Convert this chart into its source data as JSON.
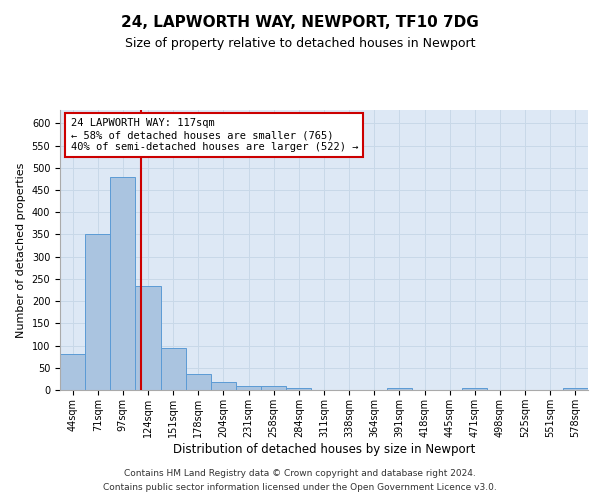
{
  "title1": "24, LAPWORTH WAY, NEWPORT, TF10 7DG",
  "title2": "Size of property relative to detached houses in Newport",
  "xlabel": "Distribution of detached houses by size in Newport",
  "ylabel": "Number of detached properties",
  "categories": [
    "44sqm",
    "71sqm",
    "97sqm",
    "124sqm",
    "151sqm",
    "178sqm",
    "204sqm",
    "231sqm",
    "258sqm",
    "284sqm",
    "311sqm",
    "338sqm",
    "364sqm",
    "391sqm",
    "418sqm",
    "445sqm",
    "471sqm",
    "498sqm",
    "525sqm",
    "551sqm",
    "578sqm"
  ],
  "values": [
    82,
    350,
    480,
    235,
    95,
    37,
    17,
    8,
    8,
    5,
    0,
    0,
    0,
    5,
    0,
    0,
    5,
    0,
    0,
    0,
    5
  ],
  "bar_color": "#aac4e0",
  "bar_edge_color": "#5b9bd5",
  "annotation_text": "24 LAPWORTH WAY: 117sqm\n← 58% of detached houses are smaller (765)\n40% of semi-detached houses are larger (522) →",
  "annotation_box_color": "#ffffff",
  "annotation_box_edge": "#cc0000",
  "red_line_color": "#cc0000",
  "grid_color": "#c8d8e8",
  "background_color": "#dde8f5",
  "ylim": [
    0,
    630
  ],
  "yticks": [
    0,
    50,
    100,
    150,
    200,
    250,
    300,
    350,
    400,
    450,
    500,
    550,
    600
  ],
  "footer1": "Contains HM Land Registry data © Crown copyright and database right 2024.",
  "footer2": "Contains public sector information licensed under the Open Government Licence v3.0.",
  "title1_fontsize": 11,
  "title2_fontsize": 9,
  "xlabel_fontsize": 8.5,
  "ylabel_fontsize": 8,
  "tick_fontsize": 7,
  "annotation_fontsize": 7.5,
  "footer_fontsize": 6.5
}
